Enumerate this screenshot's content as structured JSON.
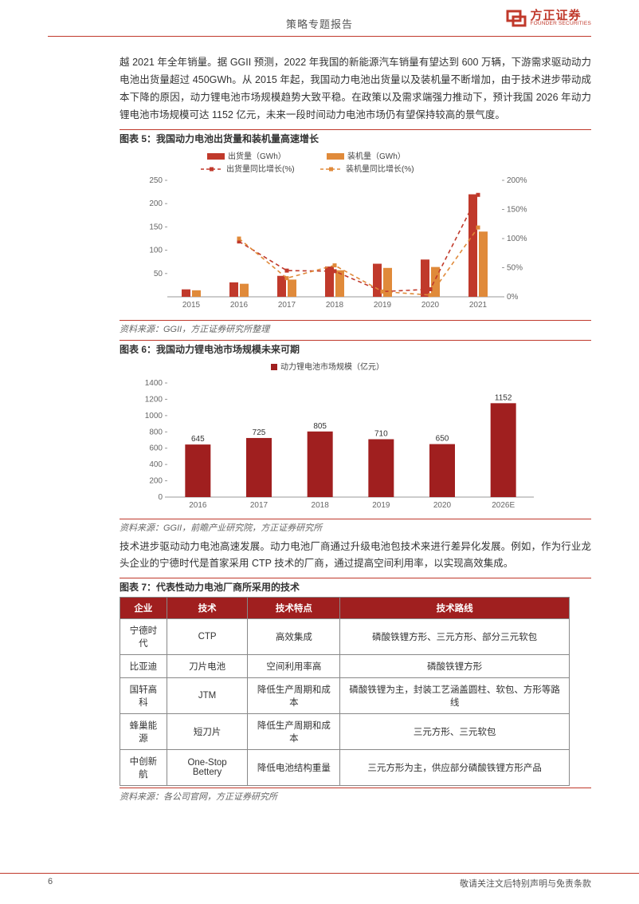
{
  "header": {
    "title": "策略专题报告"
  },
  "logo": {
    "cn": "方正证券",
    "en": "FOUNDER SECURITIES",
    "color": "#c0392b"
  },
  "para1": "越 2021 年全年销量。据 GGII 预测，2022 年我国的新能源汽车销量有望达到 600 万辆，下游需求驱动动力电池出货量超过 450GWh。从 2015 年起，我国动力电池出货量以及装机量不断增加，由于技术进步带动成本下降的原因，动力锂电池市场规模趋势大致平稳。在政策以及需求端强力推动下，预计我国 2026 年动力锂电池市场规模可达 1152 亿元，未来一段时间动力电池市场仍有望保持较高的景气度。",
  "fig5": {
    "title": "图表 5：我国动力电池出货量和装机量高速增长",
    "source": "资料来源：GGII，方正证券研究所整理",
    "type": "bar+line",
    "legend": {
      "bar1": "出货量（GWh）",
      "bar1_color": "#c0392b",
      "bar2": "装机量（GWh）",
      "bar2_color": "#e08a3a",
      "line1": "出货量同比增长(%)",
      "line1_color": "#c0392b",
      "line2": "装机量同比增长(%)",
      "line2_color": "#e08a3a"
    },
    "categories": [
      "2015",
      "2016",
      "2017",
      "2018",
      "2019",
      "2020",
      "2021"
    ],
    "bar1_values": [
      16,
      31,
      45,
      65,
      71,
      80,
      220
    ],
    "bar2_values": [
      14,
      28,
      37,
      57,
      62,
      64,
      140
    ],
    "line1_values": [
      null,
      95,
      45,
      44,
      9,
      13,
      175
    ],
    "line2_values": [
      null,
      100,
      32,
      54,
      9,
      3,
      119
    ],
    "y1_ticks": [
      50,
      100,
      150,
      200,
      250
    ],
    "y1_lim": [
      0,
      250
    ],
    "y2_ticks": [
      0,
      50,
      100,
      150,
      200
    ],
    "y2_labels": [
      "0%",
      "50%",
      "100%",
      "150%",
      "200%"
    ],
    "y2_lim": [
      0,
      200
    ],
    "bg": "#ffffff",
    "grid_color": "#d9d9d9",
    "axis_fontsize": 10,
    "legend_fontsize": 10
  },
  "fig6": {
    "title": "图表 6：我国动力锂电池市场规模未来可期",
    "source": "资料来源：GGII，前瞻产业研究院，方正证券研究所",
    "type": "bar",
    "legend": {
      "label": "动力锂电池市场规模（亿元）",
      "color": "#a01f1f"
    },
    "categories": [
      "2016",
      "2017",
      "2018",
      "2019",
      "2020",
      "2026E"
    ],
    "values": [
      645,
      725,
      805,
      710,
      650,
      1152
    ],
    "y_ticks": [
      0,
      200,
      400,
      600,
      800,
      1000,
      1200,
      1400
    ],
    "y_lim": [
      0,
      1400
    ],
    "bar_color": "#a01f1f",
    "bg": "#ffffff",
    "axis_fontsize": 10,
    "legend_fontsize": 10
  },
  "para2": "技术进步驱动动力电池高速发展。动力电池厂商通过升级电池包技术来进行差异化发展。例如，作为行业龙头企业的宁德时代是首家采用 CTP 技术的厂商，通过提高空间利用率，以实现高效集成。",
  "fig7": {
    "title": "图表 7：代表性动力电池厂商所采用的技术",
    "source": "资料来源：各公司官网，方正证券研究所",
    "type": "table",
    "header_bg": "#a01f1f",
    "header_fg": "#ffffff",
    "border_color": "#888888",
    "columns": [
      "企业",
      "技术",
      "技术特点",
      "技术路线"
    ],
    "rows": [
      [
        "宁德时代",
        "CTP",
        "高效集成",
        "磷酸铁锂方形、三元方形、部分三元软包"
      ],
      [
        "比亚迪",
        "刀片电池",
        "空间利用率高",
        "磷酸铁锂方形"
      ],
      [
        "国轩高科",
        "JTM",
        "降低生产周期和成本",
        "磷酸铁锂为主，封装工艺涵盖圆柱、软包、方形等路线"
      ],
      [
        "蜂巢能源",
        "短刀片",
        "降低生产周期和成本",
        "三元方形、三元软包"
      ],
      [
        "中创新航",
        "One-Stop Bettery",
        "降低电池结构重量",
        "三元方形为主，供应部分磷酸铁锂方形产品"
      ]
    ]
  },
  "footer": {
    "page": "6",
    "disclaimer": "敬请关注文后特别声明与免责条款"
  }
}
